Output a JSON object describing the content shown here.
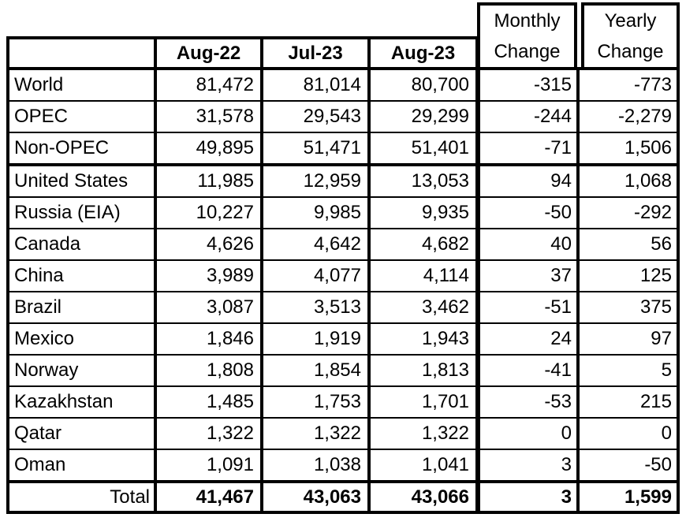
{
  "chart_data": {
    "type": "table",
    "columns": [
      "",
      "Aug-22",
      "Jul-23",
      "Aug-23",
      "Monthly Change",
      "Yearly Change"
    ],
    "rows": [
      [
        "World",
        81472,
        81014,
        80700,
        -315,
        -773
      ],
      [
        "OPEC",
        31578,
        29543,
        29299,
        -244,
        -2279
      ],
      [
        "Non-OPEC",
        49895,
        51471,
        51401,
        -71,
        1506
      ],
      [
        "United States",
        11985,
        12959,
        13053,
        94,
        1068
      ],
      [
        "Russia (EIA)",
        10227,
        9985,
        9935,
        -50,
        -292
      ],
      [
        "Canada",
        4626,
        4642,
        4682,
        40,
        56
      ],
      [
        "China",
        3989,
        4077,
        4114,
        37,
        125
      ],
      [
        "Brazil",
        3087,
        3513,
        3462,
        -51,
        375
      ],
      [
        "Mexico",
        1846,
        1919,
        1943,
        24,
        97
      ],
      [
        "Norway",
        1808,
        1854,
        1813,
        -41,
        5
      ],
      [
        "Kazakhstan",
        1485,
        1753,
        1701,
        -53,
        215
      ],
      [
        "Qatar",
        1322,
        1322,
        1322,
        0,
        0
      ],
      [
        "Oman",
        1091,
        1038,
        1041,
        3,
        -50
      ],
      [
        "Total",
        41467,
        43063,
        43066,
        3,
        1599
      ]
    ]
  },
  "table": {
    "corner_label": "",
    "month_headers": [
      "Aug-22",
      "Jul-23",
      "Aug-23"
    ],
    "change_headers": [
      {
        "line1": "Monthly",
        "line2": "Change"
      },
      {
        "line1": "Yearly",
        "line2": "Change"
      }
    ],
    "rows": [
      {
        "label": "World",
        "values": [
          "81,472",
          "81,014",
          "80,700",
          "-315",
          "-773"
        ]
      },
      {
        "label": "OPEC",
        "values": [
          "31,578",
          "29,543",
          "29,299",
          "-244",
          "-2,279"
        ]
      },
      {
        "label": "Non-OPEC",
        "values": [
          "49,895",
          "51,471",
          "51,401",
          "-71",
          "1,506"
        ],
        "thick_below": true
      },
      {
        "label": "United States",
        "values": [
          "11,985",
          "12,959",
          "13,053",
          "94",
          "1,068"
        ]
      },
      {
        "label": "Russia (EIA)",
        "values": [
          "10,227",
          "9,985",
          "9,935",
          "-50",
          "-292"
        ]
      },
      {
        "label": "Canada",
        "values": [
          "4,626",
          "4,642",
          "4,682",
          "40",
          "56"
        ]
      },
      {
        "label": "China",
        "values": [
          "3,989",
          "4,077",
          "4,114",
          "37",
          "125"
        ]
      },
      {
        "label": "Brazil",
        "values": [
          "3,087",
          "3,513",
          "3,462",
          "-51",
          "375"
        ]
      },
      {
        "label": "Mexico",
        "values": [
          "1,846",
          "1,919",
          "1,943",
          "24",
          "97"
        ]
      },
      {
        "label": "Norway",
        "values": [
          "1,808",
          "1,854",
          "1,813",
          "-41",
          "5"
        ]
      },
      {
        "label": "Kazakhstan",
        "values": [
          "1,485",
          "1,753",
          "1,701",
          "-53",
          "215"
        ]
      },
      {
        "label": "Qatar",
        "values": [
          "1,322",
          "1,322",
          "1,322",
          "0",
          "0"
        ]
      },
      {
        "label": "Oman",
        "values": [
          "1,091",
          "1,038",
          "1,041",
          "3",
          "-50"
        ],
        "thick_below": true
      },
      {
        "label": "Total",
        "values": [
          "41,467",
          "43,063",
          "43,066",
          "3",
          "1,599"
        ],
        "total": true
      }
    ]
  },
  "colors": {
    "background": "#ffffff",
    "text": "#000000",
    "border": "#000000"
  }
}
